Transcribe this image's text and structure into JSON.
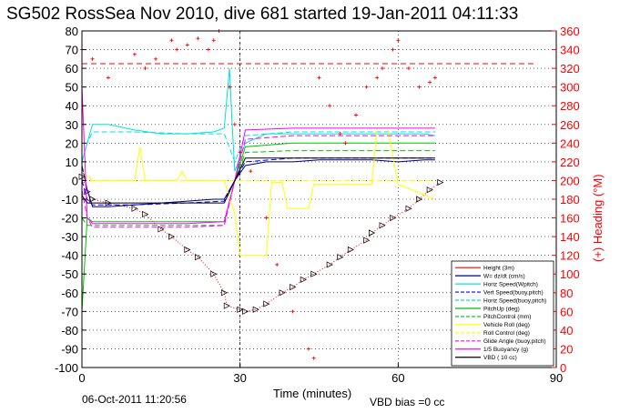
{
  "chart_data": {
    "type": "line",
    "title": "SG502 RossSea Nov 2010, dive 681 started 19-Jan-2011 04:11:33",
    "xlabel": "Time (minutes)",
    "ylabel_right": "(+) Heading (°M)",
    "xlim": [
      0,
      90
    ],
    "ylim_left": [
      -100,
      80
    ],
    "ylim_right": [
      0,
      360
    ],
    "x_ticks": [
      0,
      30,
      60,
      90
    ],
    "y_ticks_left": [
      80,
      70,
      60,
      50,
      40,
      30,
      20,
      10,
      0,
      -10,
      -20,
      -30,
      -40,
      -50,
      -60,
      -70,
      -80,
      -90,
      -100
    ],
    "y_ticks_right": [
      360,
      340,
      320,
      300,
      280,
      260,
      240,
      220,
      200,
      180,
      160,
      140,
      120,
      100,
      80,
      60,
      40,
      20,
      0
    ],
    "grid": true,
    "legend_position": "bottom-right",
    "reference_lines": {
      "heading_target_right_axis": 325,
      "vertical_x": 30
    },
    "series": [
      {
        "name": "Height (3m)",
        "color": "#ff0000",
        "style": "dotted-markers",
        "points": [
          [
            0,
            2
          ],
          [
            1,
            -6
          ],
          [
            2,
            -10
          ],
          [
            5,
            -12
          ],
          [
            10,
            -15
          ],
          [
            12,
            -18
          ],
          [
            15,
            -26
          ],
          [
            17,
            -30
          ],
          [
            20,
            -37
          ],
          [
            22,
            -41
          ],
          [
            25,
            -50
          ],
          [
            27,
            -60
          ],
          [
            27.5,
            -67
          ],
          [
            30,
            -69
          ],
          [
            31,
            -70
          ],
          [
            33,
            -69
          ],
          [
            35,
            -66
          ],
          [
            38,
            -60
          ],
          [
            40,
            -57
          ],
          [
            42,
            -53
          ],
          [
            44,
            -50
          ],
          [
            47,
            -45
          ],
          [
            49,
            -41
          ],
          [
            51,
            -37
          ],
          [
            54,
            -32
          ],
          [
            55,
            -28
          ],
          [
            57,
            -24
          ],
          [
            59,
            -20
          ],
          [
            62,
            -15
          ],
          [
            64,
            -10
          ],
          [
            66,
            -5
          ],
          [
            68,
            -1
          ]
        ]
      },
      {
        "name": "W= dz/dt (cm/s)",
        "color": "#000080",
        "style": "solid",
        "points": [
          [
            0,
            8
          ],
          [
            1,
            -5
          ],
          [
            2,
            -14
          ],
          [
            5,
            -14
          ],
          [
            10,
            -13
          ],
          [
            15,
            -12
          ],
          [
            20,
            -11
          ],
          [
            25,
            -10
          ],
          [
            27,
            -10
          ],
          [
            29,
            0
          ],
          [
            31,
            8
          ],
          [
            35,
            10
          ],
          [
            40,
            10
          ],
          [
            45,
            11
          ],
          [
            50,
            11
          ],
          [
            55,
            11
          ],
          [
            60,
            10
          ],
          [
            65,
            11
          ],
          [
            67,
            11
          ]
        ]
      },
      {
        "name": "Horiz Speed(Wpitch)",
        "color": "#00e0e0",
        "style": "solid",
        "points": [
          [
            0,
            10
          ],
          [
            1,
            20
          ],
          [
            2,
            30
          ],
          [
            5,
            30
          ],
          [
            10,
            27
          ],
          [
            15,
            25
          ],
          [
            20,
            25
          ],
          [
            25,
            26
          ],
          [
            27,
            28
          ],
          [
            28,
            60
          ],
          [
            28.5,
            30
          ],
          [
            29,
            5
          ],
          [
            31,
            20
          ],
          [
            35,
            25
          ],
          [
            40,
            25
          ],
          [
            45,
            25
          ],
          [
            50,
            25
          ],
          [
            55,
            25
          ],
          [
            60,
            25
          ],
          [
            65,
            25
          ],
          [
            67,
            24
          ]
        ]
      },
      {
        "name": "Vert Speed(buoy,pitch)",
        "color": "#0000ff",
        "style": "dashed",
        "points": [
          [
            0,
            0
          ],
          [
            1,
            -10
          ],
          [
            2,
            -13
          ],
          [
            10,
            -13
          ],
          [
            20,
            -12
          ],
          [
            27,
            -11
          ],
          [
            29,
            0
          ],
          [
            31,
            10
          ],
          [
            40,
            12
          ],
          [
            50,
            12
          ],
          [
            60,
            12
          ],
          [
            67,
            12
          ]
        ]
      },
      {
        "name": "Horiz Speed(buoy,pitch)",
        "color": "#00e0e0",
        "style": "dashed",
        "points": [
          [
            0,
            10
          ],
          [
            1,
            20
          ],
          [
            2,
            26
          ],
          [
            10,
            26
          ],
          [
            20,
            25
          ],
          [
            27,
            25
          ],
          [
            29,
            10
          ],
          [
            31,
            24
          ],
          [
            40,
            26
          ],
          [
            50,
            26
          ],
          [
            60,
            26
          ],
          [
            67,
            26
          ]
        ]
      },
      {
        "name": "PitchUp (deg)",
        "color": "#00c000",
        "style": "solid",
        "points": [
          [
            0,
            -70
          ],
          [
            1,
            -20
          ],
          [
            2,
            -22
          ],
          [
            10,
            -22
          ],
          [
            20,
            -22
          ],
          [
            27,
            -22
          ],
          [
            29,
            0
          ],
          [
            31,
            18
          ],
          [
            40,
            20
          ],
          [
            50,
            20
          ],
          [
            60,
            20
          ],
          [
            67,
            20
          ]
        ]
      },
      {
        "name": "PitchControl (mm)",
        "color": "#00c000",
        "style": "dashed",
        "points": [
          [
            0,
            -20
          ],
          [
            1,
            -24
          ],
          [
            2,
            -24
          ],
          [
            10,
            -24
          ],
          [
            20,
            -24
          ],
          [
            27,
            -24
          ],
          [
            29,
            0
          ],
          [
            31,
            15
          ],
          [
            40,
            16
          ],
          [
            50,
            16
          ],
          [
            60,
            16
          ],
          [
            67,
            16
          ]
        ]
      },
      {
        "name": "Vehicle Roll (deg)",
        "color": "#ffff00",
        "style": "solid",
        "points": [
          [
            0,
            5
          ],
          [
            2,
            0
          ],
          [
            10,
            0
          ],
          [
            11,
            18
          ],
          [
            12,
            0
          ],
          [
            18,
            0
          ],
          [
            19,
            5
          ],
          [
            20,
            0
          ],
          [
            27,
            0
          ],
          [
            29,
            -18
          ],
          [
            30,
            -40
          ],
          [
            35,
            -40
          ],
          [
            36,
            -1
          ],
          [
            38,
            -1
          ],
          [
            39,
            -15
          ],
          [
            43,
            -15
          ],
          [
            44,
            -2
          ],
          [
            55,
            -2
          ],
          [
            56,
            28
          ],
          [
            58,
            28
          ],
          [
            60,
            -2
          ],
          [
            67,
            -10
          ]
        ]
      },
      {
        "name": "Roll Control (deg)",
        "color": "#ffff00",
        "style": "dashed",
        "points": [
          [
            0,
            0
          ],
          [
            10,
            0
          ],
          [
            20,
            0
          ],
          [
            27,
            0
          ],
          [
            30,
            0
          ],
          [
            40,
            0
          ],
          [
            50,
            0
          ],
          [
            60,
            0
          ],
          [
            67,
            0
          ]
        ]
      },
      {
        "name": "Glide Angle (buoy,pitch)",
        "color": "#ff00ff",
        "style": "dashed",
        "points": [
          [
            0,
            -5
          ],
          [
            1,
            -20
          ],
          [
            2,
            -25
          ],
          [
            10,
            -25
          ],
          [
            20,
            -25
          ],
          [
            27,
            -24
          ],
          [
            29,
            0
          ],
          [
            31,
            22
          ],
          [
            40,
            24
          ],
          [
            50,
            24
          ],
          [
            60,
            24
          ],
          [
            67,
            24
          ]
        ]
      },
      {
        "name": "1/5 Buoyancy (g)",
        "color": "#ff00ff",
        "style": "solid",
        "points": [
          [
            0,
            50
          ],
          [
            1,
            -20
          ],
          [
            2,
            -23
          ],
          [
            10,
            -23
          ],
          [
            20,
            -23
          ],
          [
            27,
            -22
          ],
          [
            29,
            0
          ],
          [
            31,
            27
          ],
          [
            40,
            28
          ],
          [
            50,
            28
          ],
          [
            60,
            28
          ],
          [
            67,
            28
          ]
        ]
      },
      {
        "name": "VBD ( 10 cc)",
        "color": "#000000",
        "style": "solid",
        "points": [
          [
            0,
            -8
          ],
          [
            1,
            -12
          ],
          [
            2,
            -12
          ],
          [
            27,
            -12
          ],
          [
            29,
            0
          ],
          [
            31,
            12
          ],
          [
            67,
            12
          ]
        ]
      },
      {
        "name": "Heading (°M)",
        "axis": "right",
        "color": "#ff0000",
        "style": "markers",
        "points": [
          [
            0,
            340
          ],
          [
            2,
            330
          ],
          [
            5,
            310
          ],
          [
            10,
            335
          ],
          [
            12,
            320
          ],
          [
            14,
            330
          ],
          [
            17,
            350
          ],
          [
            18,
            340
          ],
          [
            20,
            345
          ],
          [
            22,
            352
          ],
          [
            24,
            340
          ],
          [
            25,
            350
          ],
          [
            26,
            360
          ],
          [
            28,
            300
          ],
          [
            29,
            260
          ],
          [
            30,
            230
          ],
          [
            32,
            210
          ],
          [
            35,
            160
          ],
          [
            37,
            110
          ],
          [
            40,
            60
          ],
          [
            43,
            20
          ],
          [
            44,
            10
          ],
          [
            45,
            310
          ],
          [
            47,
            280
          ],
          [
            49,
            250
          ],
          [
            50,
            240
          ],
          [
            52,
            270
          ],
          [
            54,
            300
          ],
          [
            56,
            310
          ],
          [
            57,
            320
          ],
          [
            59,
            340
          ],
          [
            60,
            350
          ],
          [
            62,
            320
          ],
          [
            64,
            300
          ],
          [
            66,
            305
          ],
          [
            67,
            310
          ]
        ]
      }
    ],
    "annotations": {
      "date": "06-Oct-2011 11:20:56",
      "vbd_bias": "VBD bias =0 cc"
    }
  }
}
